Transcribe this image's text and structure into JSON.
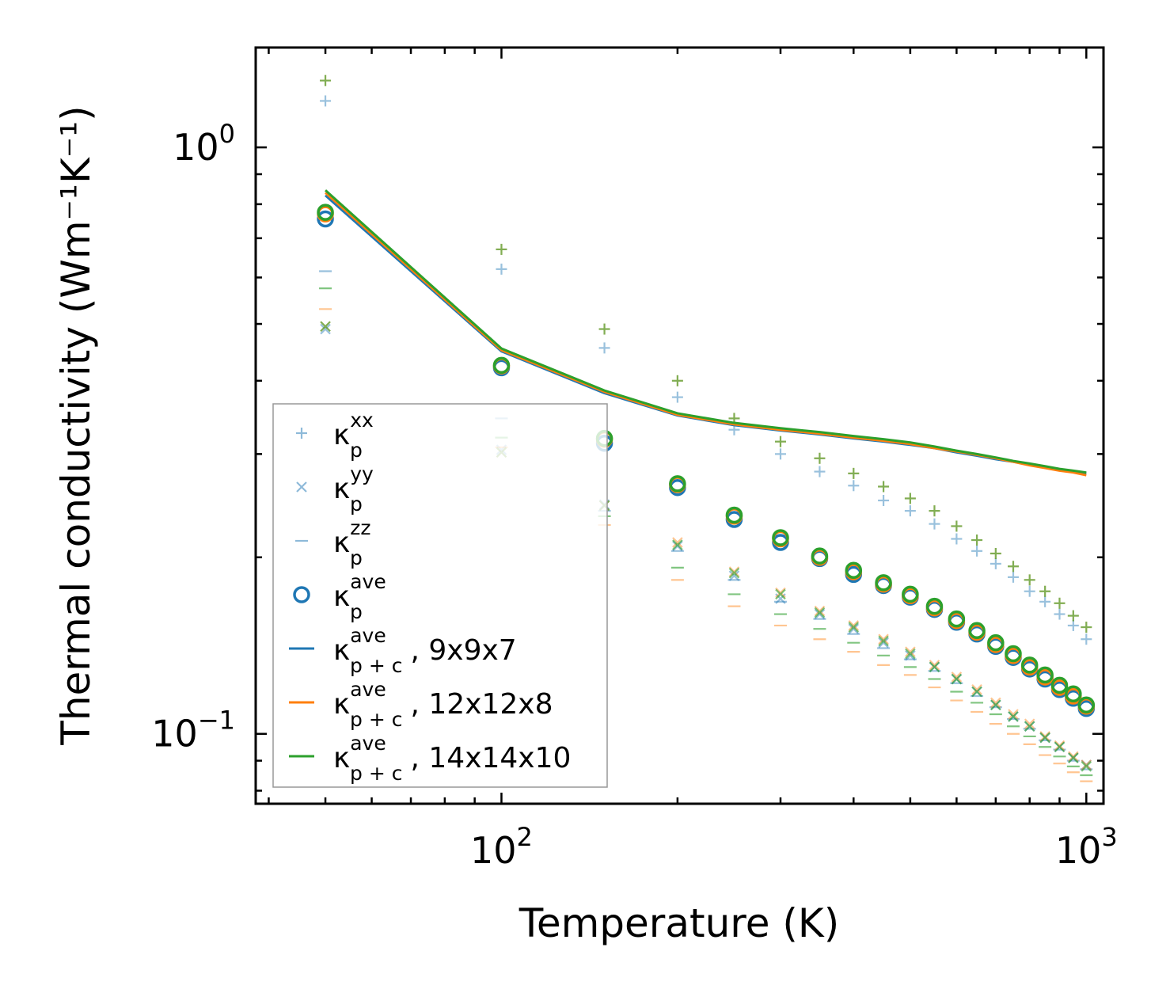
{
  "chart_data": {
    "type": "scatter",
    "title": "",
    "xlabel": "Temperature (K)",
    "ylabel": "Thermal conductivity (Wm⁻¹K⁻¹)",
    "xscale": "log",
    "yscale": "log",
    "xlim": [
      38,
      1070
    ],
    "ylim": [
      0.076,
      1.48
    ],
    "x_ticks": [
      {
        "value": 100,
        "base": "10",
        "exp": "2"
      },
      {
        "value": 1000,
        "base": "10",
        "exp": "3"
      }
    ],
    "y_ticks": [
      {
        "value": 1,
        "base": "10",
        "exp": "0"
      },
      {
        "value": 0.1,
        "base": "10",
        "exp": "−1"
      }
    ],
    "grid": false,
    "legend_position": "lower-left",
    "legend": [
      {
        "kind": "plus",
        "color": "#1f77b4",
        "alpha": 0.5,
        "sym": "κ",
        "sub": "p",
        "sup": "xx",
        "suffix": ""
      },
      {
        "kind": "cross",
        "color": "#1f77b4",
        "alpha": 0.5,
        "sym": "κ",
        "sub": "p",
        "sup": "yy",
        "suffix": ""
      },
      {
        "kind": "dash",
        "color": "#1f77b4",
        "alpha": 0.5,
        "sym": "κ",
        "sub": "p",
        "sup": "zz",
        "suffix": ""
      },
      {
        "kind": "circle",
        "color": "#1f77b4",
        "alpha": 1,
        "sym": "κ",
        "sub": "p",
        "sup": "ave",
        "suffix": ""
      },
      {
        "kind": "line",
        "color": "#1f77b4",
        "alpha": 1,
        "sym": "κ",
        "sub": "p + c",
        "sup": "ave",
        "suffix": ", 9x9x7"
      },
      {
        "kind": "line",
        "color": "#ff7f0e",
        "alpha": 1,
        "sym": "κ",
        "sub": "p + c",
        "sup": "ave",
        "suffix": ", 12x12x8"
      },
      {
        "kind": "line",
        "color": "#2ca02c",
        "alpha": 1,
        "sym": "κ",
        "sub": "p + c",
        "sup": "ave",
        "suffix": ", 14x14x10"
      }
    ],
    "x": [
      50,
      100,
      150,
      200,
      250,
      300,
      350,
      400,
      450,
      500,
      550,
      600,
      650,
      700,
      750,
      800,
      850,
      900,
      950,
      1000
    ],
    "series": [
      {
        "name": "9x9x7",
        "color": "#1f77b4",
        "xx": [
          1.2,
          0.62,
          0.455,
          0.375,
          0.33,
          0.3,
          0.28,
          0.265,
          0.25,
          0.24,
          0.228,
          0.215,
          0.205,
          0.195,
          0.185,
          0.175,
          0.168,
          0.16,
          0.153,
          0.145
        ],
        "yy": [
          0.49,
          0.305,
          0.246,
          0.209,
          0.186,
          0.17,
          0.16,
          0.151,
          0.143,
          0.136,
          0.13,
          0.124,
          0.118,
          0.112,
          0.107,
          0.103,
          0.0985,
          0.095,
          0.091,
          0.0885
        ],
        "zz": [
          0.615,
          0.345,
          0.24,
          0.205,
          0.183,
          0.168,
          0.157,
          0.148,
          0.14,
          0.134,
          0.128,
          0.122,
          0.116,
          0.111,
          0.106,
          0.102,
          0.0975,
          0.094,
          0.09,
          0.087
        ],
        "ave": [
          0.755,
          0.421,
          0.313,
          0.263,
          0.232,
          0.212,
          0.199,
          0.187,
          0.179,
          0.171,
          0.163,
          0.155,
          0.148,
          0.141,
          0.135,
          0.129,
          0.124,
          0.119,
          0.115,
          0.1105
        ],
        "line": [
          0.828,
          0.449,
          0.381,
          0.349,
          0.336,
          0.329,
          0.324,
          0.319,
          0.315,
          0.311,
          0.307,
          0.302,
          0.298,
          0.294,
          0.291,
          0.288,
          0.285,
          0.282,
          0.28,
          0.278
        ]
      },
      {
        "name": "12x12x8",
        "color": "#ff7f0e",
        "xx": [
          1.3,
          0.67,
          0.49,
          0.4,
          0.345,
          0.315,
          0.295,
          0.278,
          0.264,
          0.252,
          0.24,
          0.226,
          0.214,
          0.203,
          0.193,
          0.183,
          0.175,
          0.167,
          0.159,
          0.152
        ],
        "yy": [
          0.495,
          0.302,
          0.245,
          0.212,
          0.189,
          0.174,
          0.162,
          0.153,
          0.145,
          0.138,
          0.131,
          0.125,
          0.119,
          0.113,
          0.108,
          0.104,
          0.099,
          0.0955,
          0.0915,
          0.0885
        ],
        "zz": [
          0.53,
          0.308,
          0.227,
          0.183,
          0.165,
          0.153,
          0.145,
          0.138,
          0.131,
          0.126,
          0.12,
          0.114,
          0.109,
          0.104,
          0.1,
          0.096,
          0.092,
          0.089,
          0.086,
          0.083
        ],
        "ave": [
          0.77,
          0.424,
          0.318,
          0.266,
          0.235,
          0.215,
          0.2,
          0.189,
          0.18,
          0.172,
          0.164,
          0.156,
          0.149,
          0.142,
          0.136,
          0.13,
          0.125,
          0.12,
          0.116,
          0.1115
        ],
        "line": [
          0.837,
          0.451,
          0.383,
          0.35,
          0.337,
          0.33,
          0.325,
          0.32,
          0.316,
          0.312,
          0.307,
          0.303,
          0.299,
          0.295,
          0.291,
          0.287,
          0.284,
          0.281,
          0.279,
          0.276
        ]
      },
      {
        "name": "14x14x10",
        "color": "#2ca02c",
        "xx": [
          1.3,
          0.67,
          0.49,
          0.4,
          0.345,
          0.315,
          0.295,
          0.278,
          0.264,
          0.252,
          0.24,
          0.226,
          0.214,
          0.203,
          0.193,
          0.183,
          0.175,
          0.167,
          0.159,
          0.152
        ],
        "yy": [
          0.495,
          0.302,
          0.245,
          0.21,
          0.188,
          0.173,
          0.161,
          0.152,
          0.144,
          0.137,
          0.13,
          0.124,
          0.118,
          0.112,
          0.107,
          0.103,
          0.0985,
          0.095,
          0.091,
          0.088
        ],
        "zz": [
          0.575,
          0.32,
          0.235,
          0.192,
          0.173,
          0.16,
          0.151,
          0.143,
          0.136,
          0.13,
          0.124,
          0.118,
          0.113,
          0.108,
          0.103,
          0.099,
          0.095,
          0.0915,
          0.088,
          0.085
        ],
        "ave": [
          0.775,
          0.425,
          0.319,
          0.267,
          0.236,
          0.216,
          0.201,
          0.19,
          0.181,
          0.173,
          0.165,
          0.157,
          0.15,
          0.143,
          0.137,
          0.131,
          0.126,
          0.121,
          0.117,
          0.112
        ],
        "line": [
          0.845,
          0.454,
          0.385,
          0.352,
          0.339,
          0.332,
          0.327,
          0.322,
          0.318,
          0.314,
          0.309,
          0.304,
          0.3,
          0.296,
          0.292,
          0.289,
          0.286,
          0.283,
          0.281,
          0.279
        ]
      }
    ]
  }
}
